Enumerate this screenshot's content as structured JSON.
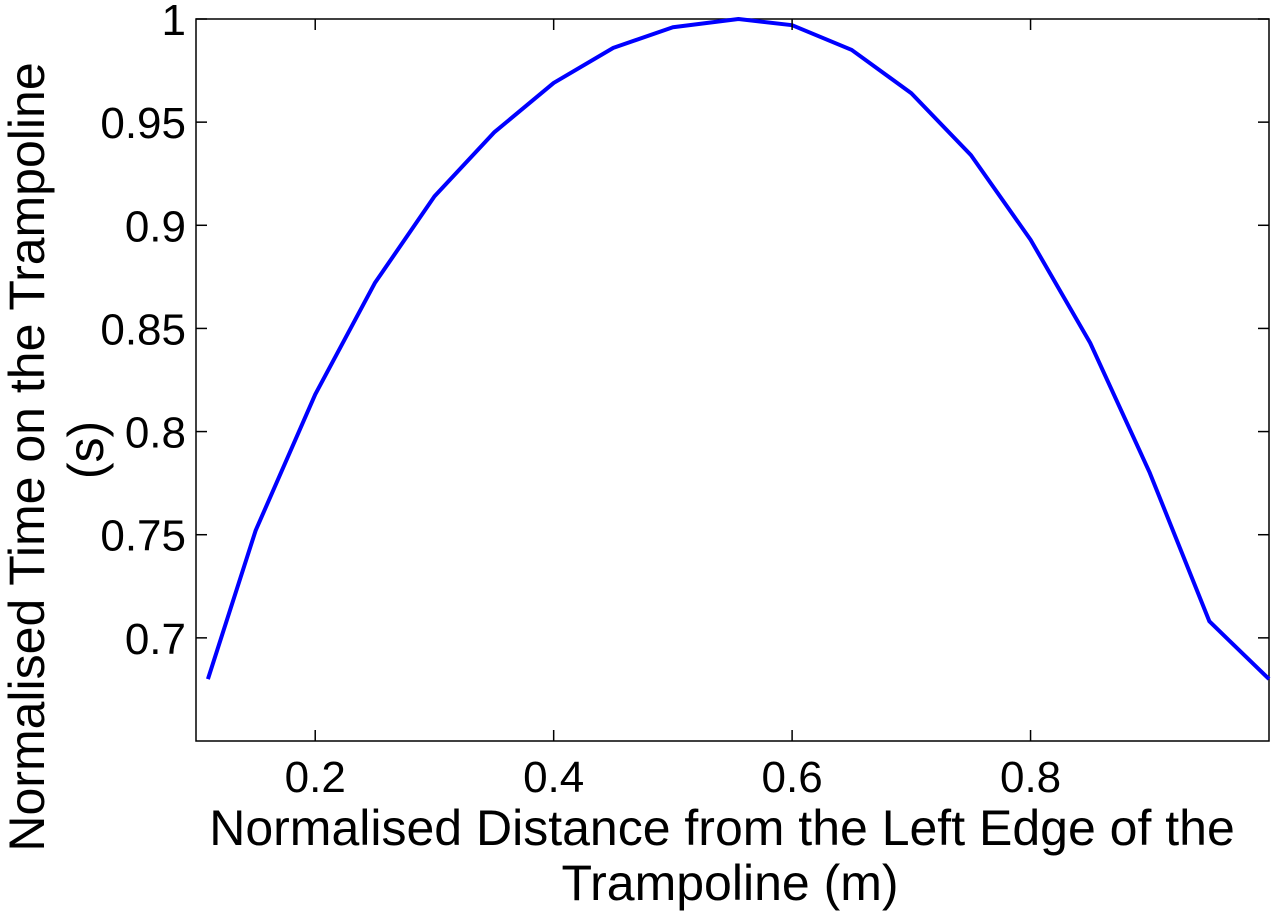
{
  "chart_data": {
    "type": "line",
    "title": "",
    "xlabel_lines": [
      "Normalised Distance from the Left Edge of the",
      "Trampoline (m)"
    ],
    "ylabel_lines": [
      "Normalised Time on the Trampoline",
      "(s)"
    ],
    "xlim": [
      0.1,
      1.0
    ],
    "ylim": [
      0.65,
      1.0
    ],
    "xticks": [
      0.2,
      0.4,
      0.6,
      0.8
    ],
    "xtick_labels": [
      "0.2",
      "0.4",
      "0.6",
      "0.8"
    ],
    "yticks": [
      0.7,
      0.75,
      0.8,
      0.85,
      0.9,
      0.95,
      1.0
    ],
    "ytick_labels": [
      "0.7",
      "0.75",
      "0.8",
      "0.85",
      "0.9",
      "0.95",
      "1"
    ],
    "grid": false,
    "legend": "none",
    "line_color": "#0000ff",
    "series": [
      {
        "x": [
          0.11,
          0.15,
          0.2,
          0.25,
          0.3,
          0.35,
          0.4,
          0.45,
          0.5,
          0.555,
          0.6,
          0.65,
          0.7,
          0.75,
          0.8,
          0.85,
          0.9,
          0.95,
          1.0
        ],
        "y": [
          0.68,
          0.752,
          0.818,
          0.872,
          0.914,
          0.945,
          0.969,
          0.986,
          0.996,
          1.0,
          0.997,
          0.985,
          0.964,
          0.934,
          0.893,
          0.843,
          0.78,
          0.708,
          0.68
        ]
      }
    ]
  }
}
